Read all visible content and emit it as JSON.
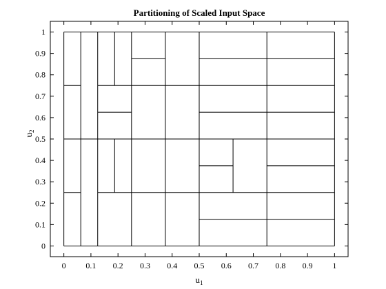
{
  "chart_data": {
    "type": "partition",
    "title": "Partitioning of Scaled Input Space",
    "xlabel": "u",
    "xlabel_sub": "1",
    "ylabel": "u",
    "ylabel_sub": "2",
    "xlim": [
      -0.05,
      1.05
    ],
    "ylim": [
      -0.05,
      1.05
    ],
    "xticks": [
      0,
      0.1,
      0.2,
      0.3,
      0.4,
      0.5,
      0.6,
      0.7,
      0.8,
      0.9,
      1
    ],
    "yticks": [
      0,
      0.1,
      0.2,
      0.3,
      0.4,
      0.5,
      0.6,
      0.7,
      0.8,
      0.9,
      1
    ],
    "xtick_labels": [
      "0",
      "0.1",
      "0.2",
      "0.3",
      "0.4",
      "0.5",
      "0.6",
      "0.7",
      "0.8",
      "0.9",
      "1"
    ],
    "ytick_labels": [
      "0",
      "0.1",
      "0.2",
      "0.3",
      "0.4",
      "0.5",
      "0.6",
      "0.7",
      "0.8",
      "0.9",
      "1"
    ],
    "grid": false,
    "segments": [
      {
        "x1": 0,
        "y1": 0,
        "x2": 1,
        "y2": 0
      },
      {
        "x1": 0,
        "y1": 1,
        "x2": 1,
        "y2": 1
      },
      {
        "x1": 0,
        "y1": 0,
        "x2": 0,
        "y2": 1
      },
      {
        "x1": 1,
        "y1": 0,
        "x2": 1,
        "y2": 1
      },
      {
        "x1": 0,
        "y1": 0.5,
        "x2": 1,
        "y2": 0.5
      },
      {
        "x1": 0,
        "y1": 0.25,
        "x2": 0.0625,
        "y2": 0.25
      },
      {
        "x1": 0,
        "y1": 0.75,
        "x2": 0.0625,
        "y2": 0.75
      },
      {
        "x1": 0.125,
        "y1": 0.25,
        "x2": 1,
        "y2": 0.25
      },
      {
        "x1": 0.125,
        "y1": 0.75,
        "x2": 1,
        "y2": 0.75
      },
      {
        "x1": 0.125,
        "y1": 0.625,
        "x2": 0.25,
        "y2": 0.625
      },
      {
        "x1": 0.25,
        "y1": 0.875,
        "x2": 0.375,
        "y2": 0.875
      },
      {
        "x1": 0.5,
        "y1": 0.875,
        "x2": 1,
        "y2": 0.875
      },
      {
        "x1": 0.5,
        "y1": 0.625,
        "x2": 1,
        "y2": 0.625
      },
      {
        "x1": 0.5,
        "y1": 0.375,
        "x2": 0.625,
        "y2": 0.375
      },
      {
        "x1": 0.75,
        "y1": 0.375,
        "x2": 1,
        "y2": 0.375
      },
      {
        "x1": 0.5,
        "y1": 0.125,
        "x2": 1,
        "y2": 0.125
      },
      {
        "x1": 0.0625,
        "y1": 0,
        "x2": 0.0625,
        "y2": 1
      },
      {
        "x1": 0.125,
        "y1": 0,
        "x2": 0.125,
        "y2": 1
      },
      {
        "x1": 0.1875,
        "y1": 0.75,
        "x2": 0.1875,
        "y2": 1
      },
      {
        "x1": 0.1875,
        "y1": 0.25,
        "x2": 0.1875,
        "y2": 0.5
      },
      {
        "x1": 0.25,
        "y1": 0,
        "x2": 0.25,
        "y2": 1
      },
      {
        "x1": 0.375,
        "y1": 0,
        "x2": 0.375,
        "y2": 1
      },
      {
        "x1": 0.5,
        "y1": 0,
        "x2": 0.5,
        "y2": 1
      },
      {
        "x1": 0.625,
        "y1": 0.25,
        "x2": 0.625,
        "y2": 0.5
      },
      {
        "x1": 0.75,
        "y1": 0,
        "x2": 0.75,
        "y2": 1
      }
    ]
  }
}
